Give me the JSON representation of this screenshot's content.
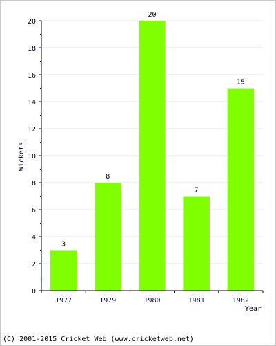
{
  "chart_data": {
    "type": "bar",
    "categories": [
      "1977",
      "1979",
      "1980",
      "1981",
      "1982"
    ],
    "values": [
      3,
      8,
      20,
      7,
      15
    ],
    "xlabel": "Year",
    "ylabel": "Wickets",
    "ylim": [
      0,
      20
    ],
    "yticks": [
      0,
      2,
      4,
      6,
      8,
      10,
      12,
      14,
      16,
      18,
      20
    ],
    "grid": true,
    "bar_color": "#80ff00"
  },
  "footer": {
    "credit": "(C) 2001-2015 Cricket Web (www.cricketweb.net)"
  }
}
